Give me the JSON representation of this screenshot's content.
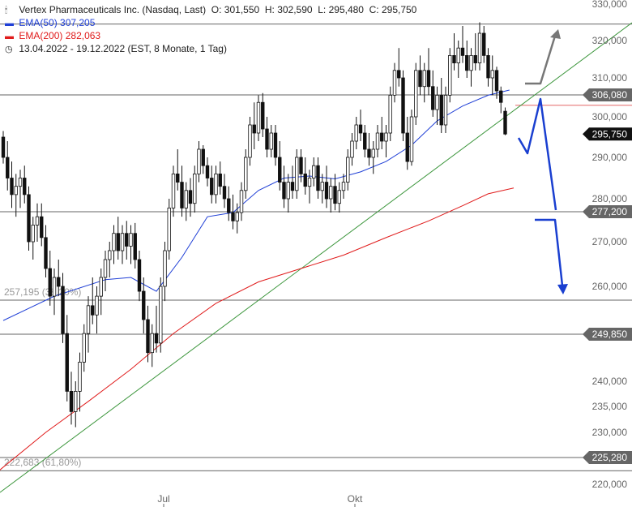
{
  "header": {
    "instrument": "Vertex Pharmaceuticals Inc. (Nasdaq, Last)",
    "open": "O: 301,550",
    "high": "H: 302,590",
    "low": "L: 295,480",
    "close": "C: 295,750",
    "ema50_label": "EMA(50)",
    "ema50_value": "307,205",
    "ema200_label": "EMA(200)",
    "ema200_value": "282,063",
    "range": "13.04.2022 - 19.12.2022",
    "range_detail": "(EST, 8 Monate, 1 Tag)"
  },
  "colors": {
    "ema50": "#1f3fd6",
    "ema200": "#e01b1b",
    "trendline": "#3c963c",
    "arrow_down": "#1a3fd0",
    "arrow_up": "#777777",
    "candle": "#111111"
  },
  "chart_data": {
    "type": "candlestick",
    "ylim": [
      218000,
      330000
    ],
    "y_ticks": [
      {
        "value": 330000,
        "label": "330,000"
      },
      {
        "value": 320000,
        "label": "320,000"
      },
      {
        "value": 310000,
        "label": "310,000"
      },
      {
        "value": 300000,
        "label": "300,000"
      },
      {
        "value": 290000,
        "label": "290,000"
      },
      {
        "value": 280000,
        "label": "280,000"
      },
      {
        "value": 270000,
        "label": "270,000"
      },
      {
        "value": 260000,
        "label": "260,000"
      },
      {
        "value": 240000,
        "label": "240,000"
      },
      {
        "value": 235000,
        "label": "235,000"
      },
      {
        "value": 230000,
        "label": "230,000"
      },
      {
        "value": 220000,
        "label": "220,000"
      }
    ],
    "x_ticks": [
      {
        "label": "Jul",
        "date": "2022-07-01"
      },
      {
        "label": "Okt",
        "date": "2022-10-03"
      }
    ],
    "price_tags": [
      {
        "value": 306080,
        "label": "306,080",
        "style": "gray"
      },
      {
        "value": 295750,
        "label": "295,750",
        "style": "black"
      },
      {
        "value": 277200,
        "label": "277,200",
        "style": "gray"
      },
      {
        "value": 249850,
        "label": "249,850",
        "style": "gray"
      },
      {
        "value": 225280,
        "label": "225,280",
        "style": "gray"
      }
    ],
    "horizontal_lines": [
      {
        "value": 324500
      },
      {
        "value": 306080
      },
      {
        "value": 277200
      },
      {
        "value": 257195
      },
      {
        "value": 249850
      },
      {
        "value": 225280
      },
      {
        "value": 222683
      }
    ],
    "fib_labels": [
      {
        "value": 257195,
        "label": "257,195 (38,20%)"
      },
      {
        "value": 222683,
        "label": "222,683 (61,80%)"
      }
    ],
    "candles": [
      {
        "o": 295.0,
        "h": 296.5,
        "l": 288.5,
        "c": 290.0
      },
      {
        "o": 290.0,
        "h": 294.0,
        "l": 282.0,
        "c": 285.0
      },
      {
        "o": 285.0,
        "h": 289.0,
        "l": 278.0,
        "c": 281.0
      },
      {
        "o": 281.0,
        "h": 286.0,
        "l": 276.0,
        "c": 283.0
      },
      {
        "o": 283.0,
        "h": 287.0,
        "l": 278.0,
        "c": 285.0
      },
      {
        "o": 285.0,
        "h": 288.0,
        "l": 279.0,
        "c": 281.0
      },
      {
        "o": 281.0,
        "h": 283.0,
        "l": 268.0,
        "c": 270.0
      },
      {
        "o": 270.0,
        "h": 276.0,
        "l": 266.0,
        "c": 274.0
      },
      {
        "o": 274.0,
        "h": 279.0,
        "l": 270.0,
        "c": 276.0
      },
      {
        "o": 276.0,
        "h": 279.0,
        "l": 269.0,
        "c": 271.0
      },
      {
        "o": 271.0,
        "h": 274.0,
        "l": 262.0,
        "c": 264.0
      },
      {
        "o": 264.0,
        "h": 268.0,
        "l": 256.0,
        "c": 258.0
      },
      {
        "o": 258.0,
        "h": 264.0,
        "l": 254.0,
        "c": 262.0
      },
      {
        "o": 262.0,
        "h": 266.0,
        "l": 258.0,
        "c": 260.0
      },
      {
        "o": 260.0,
        "h": 263.0,
        "l": 248.0,
        "c": 250.0
      },
      {
        "o": 250.0,
        "h": 254.0,
        "l": 236.0,
        "c": 238.0
      },
      {
        "o": 238.0,
        "h": 242.0,
        "l": 231.5,
        "c": 234.0
      },
      {
        "o": 234.0,
        "h": 240.0,
        "l": 231.0,
        "c": 238.0
      },
      {
        "o": 238.0,
        "h": 246.0,
        "l": 234.0,
        "c": 244.0
      },
      {
        "o": 244.0,
        "h": 252.0,
        "l": 242.0,
        "c": 250.0
      },
      {
        "o": 250.0,
        "h": 258.0,
        "l": 246.0,
        "c": 256.0
      },
      {
        "o": 256.0,
        "h": 262.0,
        "l": 252.0,
        "c": 254.0
      },
      {
        "o": 254.0,
        "h": 260.0,
        "l": 250.0,
        "c": 258.0
      },
      {
        "o": 258.0,
        "h": 264.0,
        "l": 254.0,
        "c": 262.0
      },
      {
        "o": 262.0,
        "h": 268.0,
        "l": 259.0,
        "c": 266.0
      },
      {
        "o": 266.0,
        "h": 270.0,
        "l": 262.0,
        "c": 268.0
      },
      {
        "o": 268.0,
        "h": 274.0,
        "l": 265.0,
        "c": 272.0
      },
      {
        "o": 272.0,
        "h": 276.0,
        "l": 266.0,
        "c": 268.0
      },
      {
        "o": 268.0,
        "h": 274.0,
        "l": 265.0,
        "c": 272.0
      },
      {
        "o": 272.0,
        "h": 275.0,
        "l": 266.0,
        "c": 269.0
      },
      {
        "o": 269.0,
        "h": 274.0,
        "l": 265.0,
        "c": 272.0
      },
      {
        "o": 272.0,
        "h": 274.5,
        "l": 264.0,
        "c": 266.0
      },
      {
        "o": 266.0,
        "h": 268.0,
        "l": 257.0,
        "c": 259.0
      },
      {
        "o": 259.0,
        "h": 262.0,
        "l": 250.0,
        "c": 253.0
      },
      {
        "o": 253.0,
        "h": 256.0,
        "l": 244.0,
        "c": 246.0
      },
      {
        "o": 246.0,
        "h": 252.0,
        "l": 243.0,
        "c": 250.0
      },
      {
        "o": 250.0,
        "h": 256.0,
        "l": 246.0,
        "c": 248.0
      },
      {
        "o": 248.0,
        "h": 262.0,
        "l": 246.0,
        "c": 260.0
      },
      {
        "o": 260.0,
        "h": 270.0,
        "l": 257.0,
        "c": 268.0
      },
      {
        "o": 268.0,
        "h": 280.0,
        "l": 266.0,
        "c": 278.0
      },
      {
        "o": 278.0,
        "h": 288.0,
        "l": 276.0,
        "c": 286.0
      },
      {
        "o": 286.0,
        "h": 292.0,
        "l": 282.0,
        "c": 284.0
      },
      {
        "o": 284.0,
        "h": 288.0,
        "l": 276.0,
        "c": 278.0
      },
      {
        "o": 278.0,
        "h": 284.0,
        "l": 275.0,
        "c": 282.0
      },
      {
        "o": 282.0,
        "h": 285.0,
        "l": 276.0,
        "c": 279.0
      },
      {
        "o": 279.0,
        "h": 288.0,
        "l": 277.0,
        "c": 286.0
      },
      {
        "o": 286.0,
        "h": 294.0,
        "l": 284.0,
        "c": 292.0
      },
      {
        "o": 292.0,
        "h": 293.0,
        "l": 286.0,
        "c": 288.0
      },
      {
        "o": 288.0,
        "h": 290.0,
        "l": 283.0,
        "c": 285.0
      },
      {
        "o": 285.0,
        "h": 288.0,
        "l": 279.0,
        "c": 281.0
      },
      {
        "o": 281.0,
        "h": 288.0,
        "l": 279.0,
        "c": 286.0
      },
      {
        "o": 286.0,
        "h": 289.0,
        "l": 281.0,
        "c": 283.0
      },
      {
        "o": 283.0,
        "h": 286.0,
        "l": 278.0,
        "c": 280.0
      },
      {
        "o": 280.0,
        "h": 283.0,
        "l": 275.0,
        "c": 277.0
      },
      {
        "o": 277.0,
        "h": 281.0,
        "l": 273.0,
        "c": 275.0
      },
      {
        "o": 275.0,
        "h": 279.0,
        "l": 272.0,
        "c": 277.0
      },
      {
        "o": 277.0,
        "h": 284.0,
        "l": 275.0,
        "c": 282.0
      },
      {
        "o": 282.0,
        "h": 292.0,
        "l": 280.0,
        "c": 290.0
      },
      {
        "o": 290.0,
        "h": 300.0,
        "l": 288.0,
        "c": 298.0
      },
      {
        "o": 298.0,
        "h": 304.0,
        "l": 292.0,
        "c": 296.0
      },
      {
        "o": 296.0,
        "h": 306.0,
        "l": 294.0,
        "c": 304.0
      },
      {
        "o": 304.0,
        "h": 306.5,
        "l": 295.0,
        "c": 297.0
      },
      {
        "o": 297.0,
        "h": 300.0,
        "l": 290.0,
        "c": 292.0
      },
      {
        "o": 292.0,
        "h": 298.0,
        "l": 290.0,
        "c": 296.0
      },
      {
        "o": 296.0,
        "h": 298.0,
        "l": 288.0,
        "c": 290.0
      },
      {
        "o": 290.0,
        "h": 294.0,
        "l": 282.0,
        "c": 284.0
      },
      {
        "o": 284.0,
        "h": 288.0,
        "l": 278.0,
        "c": 280.0
      },
      {
        "o": 280.0,
        "h": 286.0,
        "l": 277.0,
        "c": 284.0
      },
      {
        "o": 284.0,
        "h": 288.0,
        "l": 280.0,
        "c": 282.0
      },
      {
        "o": 282.0,
        "h": 292.0,
        "l": 280.0,
        "c": 290.0
      },
      {
        "o": 290.0,
        "h": 292.0,
        "l": 284.0,
        "c": 286.0
      },
      {
        "o": 286.0,
        "h": 290.0,
        "l": 281.0,
        "c": 283.0
      },
      {
        "o": 283.0,
        "h": 287.0,
        "l": 279.0,
        "c": 285.0
      },
      {
        "o": 285.0,
        "h": 290.0,
        "l": 283.0,
        "c": 288.0
      },
      {
        "o": 288.0,
        "h": 290.0,
        "l": 280.0,
        "c": 282.0
      },
      {
        "o": 282.0,
        "h": 286.0,
        "l": 279.0,
        "c": 284.0
      },
      {
        "o": 284.0,
        "h": 288.0,
        "l": 278.0,
        "c": 280.0
      },
      {
        "o": 280.0,
        "h": 285.0,
        "l": 277.0,
        "c": 283.0
      },
      {
        "o": 283.0,
        "h": 286.0,
        "l": 277.5,
        "c": 279.0
      },
      {
        "o": 279.0,
        "h": 284.0,
        "l": 277.0,
        "c": 282.0
      },
      {
        "o": 282.0,
        "h": 286.0,
        "l": 280.0,
        "c": 284.0
      },
      {
        "o": 284.0,
        "h": 292.0,
        "l": 282.0,
        "c": 290.0
      },
      {
        "o": 290.0,
        "h": 296.0,
        "l": 288.0,
        "c": 294.0
      },
      {
        "o": 294.0,
        "h": 300.0,
        "l": 292.0,
        "c": 298.0
      },
      {
        "o": 298.0,
        "h": 302.0,
        "l": 294.0,
        "c": 296.0
      },
      {
        "o": 296.0,
        "h": 298.0,
        "l": 290.0,
        "c": 292.0
      },
      {
        "o": 292.0,
        "h": 296.0,
        "l": 288.0,
        "c": 290.0
      },
      {
        "o": 290.0,
        "h": 294.0,
        "l": 286.0,
        "c": 292.0
      },
      {
        "o": 292.0,
        "h": 298.0,
        "l": 290.0,
        "c": 296.0
      },
      {
        "o": 296.0,
        "h": 300.0,
        "l": 292.0,
        "c": 294.0
      },
      {
        "o": 294.0,
        "h": 298.0,
        "l": 290.0,
        "c": 296.0
      },
      {
        "o": 296.0,
        "h": 308.0,
        "l": 294.0,
        "c": 306.0
      },
      {
        "o": 306.0,
        "h": 314.0,
        "l": 304.0,
        "c": 312.0
      },
      {
        "o": 312.0,
        "h": 318.0,
        "l": 308.0,
        "c": 310.0
      },
      {
        "o": 310.0,
        "h": 312.0,
        "l": 294.0,
        "c": 296.0
      },
      {
        "o": 296.0,
        "h": 300.0,
        "l": 287.0,
        "c": 289.0
      },
      {
        "o": 289.0,
        "h": 302.0,
        "l": 288.0,
        "c": 300.0
      },
      {
        "o": 300.0,
        "h": 314.0,
        "l": 298.0,
        "c": 312.0
      },
      {
        "o": 312.0,
        "h": 316.0,
        "l": 306.0,
        "c": 308.0
      },
      {
        "o": 308.0,
        "h": 314.0,
        "l": 304.0,
        "c": 312.0
      },
      {
        "o": 312.0,
        "h": 318.0,
        "l": 306.0,
        "c": 308.0
      },
      {
        "o": 308.0,
        "h": 312.0,
        "l": 300.0,
        "c": 302.0
      },
      {
        "o": 302.0,
        "h": 308.0,
        "l": 298.0,
        "c": 306.0
      },
      {
        "o": 306.0,
        "h": 310.0,
        "l": 296.0,
        "c": 298.0
      },
      {
        "o": 298.0,
        "h": 308.0,
        "l": 296.0,
        "c": 306.0
      },
      {
        "o": 306.0,
        "h": 318.0,
        "l": 304.0,
        "c": 316.0
      },
      {
        "o": 316.0,
        "h": 322.0,
        "l": 312.0,
        "c": 314.0
      },
      {
        "o": 314.0,
        "h": 320.0,
        "l": 310.0,
        "c": 318.0
      },
      {
        "o": 318.0,
        "h": 324.0,
        "l": 314.0,
        "c": 316.0
      },
      {
        "o": 316.0,
        "h": 320.0,
        "l": 310.0,
        "c": 312.0
      },
      {
        "o": 312.0,
        "h": 318.0,
        "l": 308.0,
        "c": 316.0
      },
      {
        "o": 316.0,
        "h": 322.0,
        "l": 312.0,
        "c": 314.0
      },
      {
        "o": 314.0,
        "h": 325.0,
        "l": 312.0,
        "c": 322.0
      },
      {
        "o": 322.0,
        "h": 324.0,
        "l": 314.0,
        "c": 316.0
      },
      {
        "o": 316.0,
        "h": 318.0,
        "l": 308.0,
        "c": 310.0
      },
      {
        "o": 310.0,
        "h": 316.0,
        "l": 306.0,
        "c": 312.0
      },
      {
        "o": 312.0,
        "h": 313.0,
        "l": 305.0,
        "c": 307.0
      },
      {
        "o": 307.0,
        "h": 308.0,
        "l": 301.0,
        "c": 304.0
      },
      {
        "o": 301.55,
        "h": 302.59,
        "l": 295.48,
        "c": 295.75
      }
    ],
    "ema50": [
      [
        0,
        252.8
      ],
      [
        12,
        258.0
      ],
      [
        24,
        261.5
      ],
      [
        30,
        262.0
      ],
      [
        36,
        259.0
      ],
      [
        42,
        266.5
      ],
      [
        48,
        276.0
      ],
      [
        54,
        277.0
      ],
      [
        60,
        282.0
      ],
      [
        66,
        285.0
      ],
      [
        72,
        285.5
      ],
      [
        78,
        284.8
      ],
      [
        84,
        286.5
      ],
      [
        90,
        289.0
      ],
      [
        96,
        293.0
      ],
      [
        102,
        299.0
      ],
      [
        108,
        303.0
      ],
      [
        114,
        306.0
      ],
      [
        119,
        307.2
      ]
    ],
    "ema200": [
      [
        -2,
        222.0
      ],
      [
        10,
        230.0
      ],
      [
        20,
        236.0
      ],
      [
        30,
        242.5
      ],
      [
        40,
        250.0
      ],
      [
        50,
        256.5
      ],
      [
        60,
        261.0
      ],
      [
        70,
        264.0
      ],
      [
        80,
        267.0
      ],
      [
        90,
        271.0
      ],
      [
        100,
        275.0
      ],
      [
        108,
        278.5
      ],
      [
        114,
        281.2
      ],
      [
        120,
        282.6
      ]
    ]
  }
}
